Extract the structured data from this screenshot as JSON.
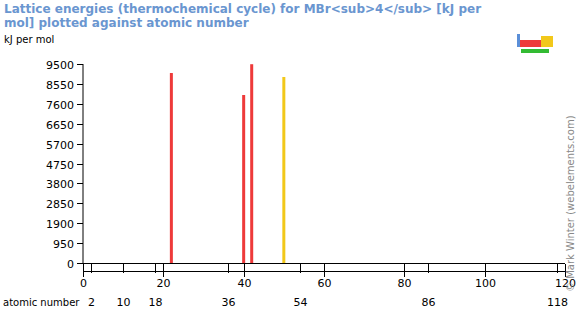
{
  "chart_data": {
    "type": "bar",
    "title": "Lattice energies (thermochemical cycle) for MBr<sub>4</sub> [kJ per mol] plotted against atomic number",
    "y_label": "kJ per mol",
    "x_label": "atomic number",
    "annotations": [
      "© Mark Winter (webelements.com)"
    ],
    "x": [
      22,
      40,
      42,
      50
    ],
    "values": [
      9070,
      8020,
      9490,
      8880
    ],
    "colors": [
      "#ee3a3a",
      "#ee3a3a",
      "#ee3a3a",
      "#f2c81a"
    ],
    "xlim": [
      0,
      120
    ],
    "xticks": [
      0,
      2,
      10,
      18,
      20,
      36,
      40,
      54,
      60,
      80,
      86,
      100,
      118,
      120
    ],
    "ylim": [
      0,
      9500
    ],
    "yticks": [
      0,
      950,
      1900,
      2850,
      3800,
      4750,
      5700,
      6650,
      7600,
      8550,
      9500
    ],
    "grid": false
  }
}
